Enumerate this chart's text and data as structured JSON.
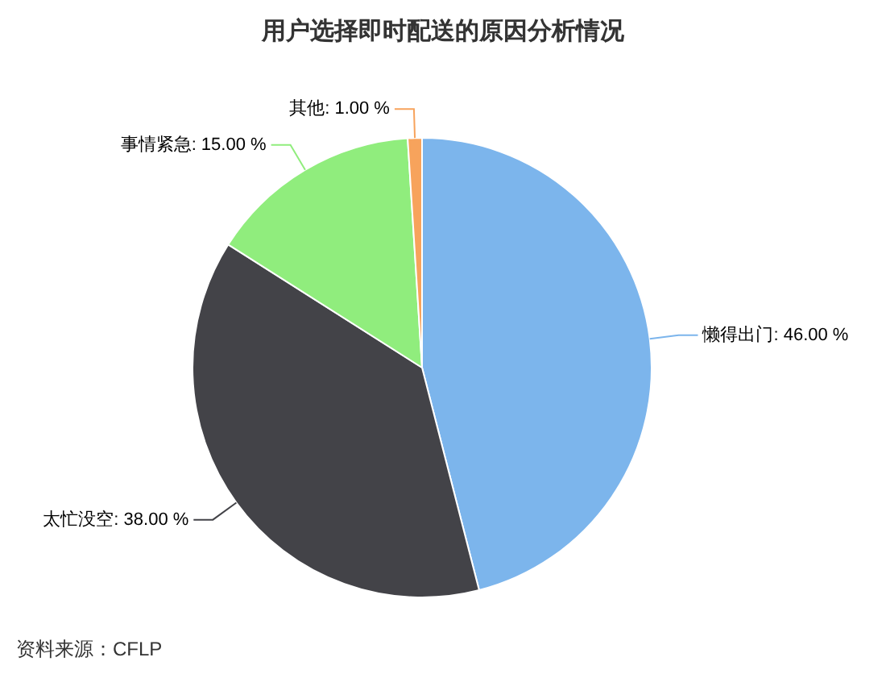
{
  "chart_data": {
    "type": "pie",
    "title": "用户选择即时配送的原因分析情况",
    "categories": [
      "懒得出门",
      "太忙没空",
      "事情紧急",
      "其他"
    ],
    "values": [
      46,
      38,
      15,
      1
    ],
    "value_labels": [
      "46.00 %",
      "38.00 %",
      "15.00 %",
      "1.00 %"
    ],
    "colors": [
      "#7cb5ec",
      "#434348",
      "#90ed7d",
      "#f7a35c"
    ],
    "legend": false,
    "annotations": [
      "资料来源：CFLP"
    ]
  }
}
